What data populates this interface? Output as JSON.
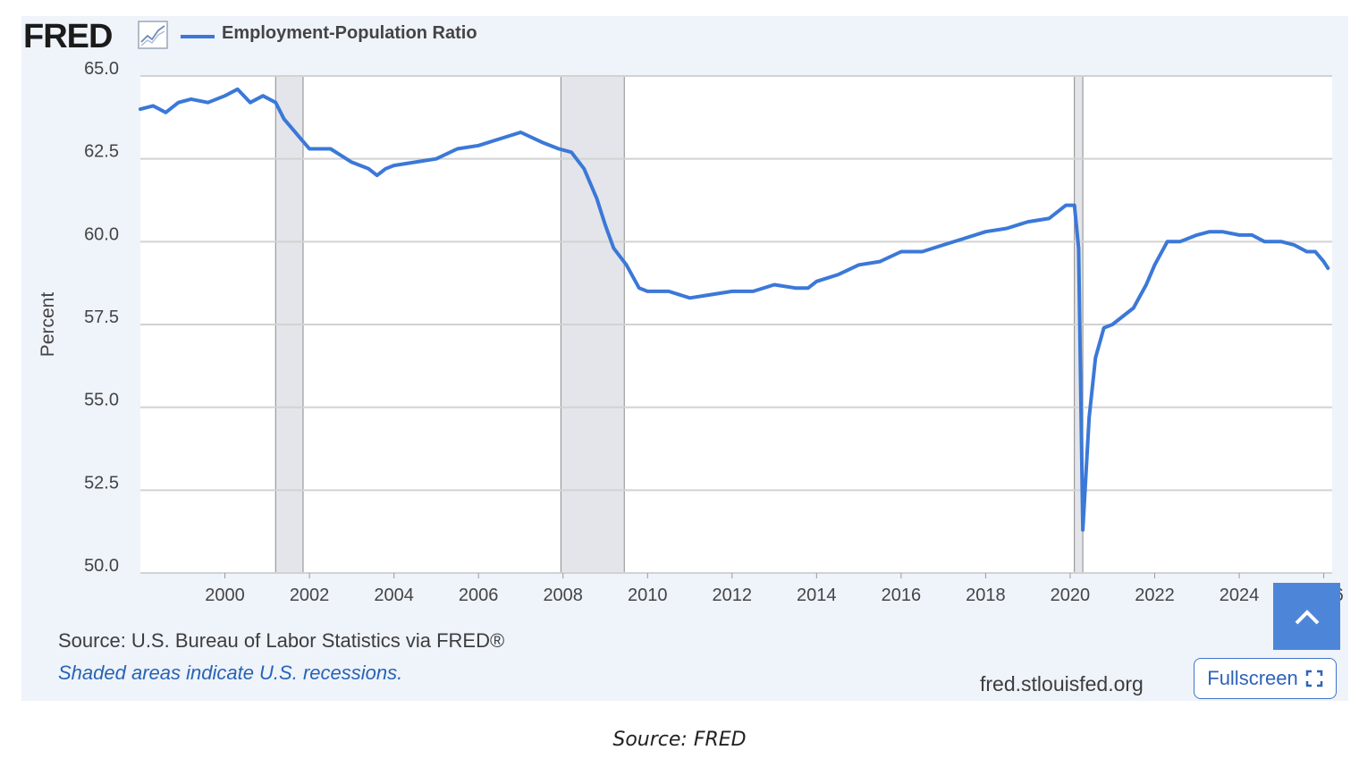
{
  "header": {
    "logo": "FRED",
    "logo_icon": "trend-line-icon",
    "legend_label": "Employment-Population Ratio"
  },
  "chart_data": {
    "type": "line",
    "ylabel": "Percent",
    "xlabel": "",
    "xlim": [
      1998.0,
      2026.2
    ],
    "ylim": [
      50.0,
      65.0
    ],
    "grid": true,
    "y_ticks": [
      "50.0",
      "52.5",
      "55.0",
      "57.5",
      "60.0",
      "62.5",
      "65.0"
    ],
    "x_ticks": [
      "2000",
      "2002",
      "2004",
      "2006",
      "2008",
      "2010",
      "2012",
      "2014",
      "2016",
      "2018",
      "2020",
      "2022",
      "2024",
      "2026"
    ],
    "recessions": [
      [
        2001.2,
        2001.85
      ],
      [
        2007.95,
        2009.45
      ],
      [
        2020.1,
        2020.3
      ]
    ],
    "series": [
      {
        "color": "#3b78d8",
        "x": [
          1998.0,
          1998.3,
          1998.6,
          1998.9,
          1999.2,
          1999.6,
          2000.0,
          2000.3,
          2000.6,
          2000.9,
          2001.2,
          2001.4,
          2001.6,
          2001.8,
          2002.0,
          2002.5,
          2003.0,
          2003.4,
          2003.6,
          2003.8,
          2004.0,
          2004.5,
          2005.0,
          2005.5,
          2006.0,
          2006.5,
          2007.0,
          2007.5,
          2007.9,
          2008.2,
          2008.5,
          2008.8,
          2009.0,
          2009.2,
          2009.5,
          2009.8,
          2010.0,
          2010.5,
          2011.0,
          2011.5,
          2012.0,
          2012.5,
          2013.0,
          2013.5,
          2013.8,
          2014.0,
          2014.5,
          2015.0,
          2015.5,
          2016.0,
          2016.5,
          2017.0,
          2017.5,
          2018.0,
          2018.5,
          2019.0,
          2019.5,
          2019.9,
          2020.1,
          2020.2,
          2020.3,
          2020.45,
          2020.6,
          2020.8,
          2021.0,
          2021.5,
          2021.8,
          2022.0,
          2022.3,
          2022.6,
          2023.0,
          2023.3,
          2023.6,
          2024.0,
          2024.3,
          2024.6,
          2025.0,
          2025.3,
          2025.6,
          2025.8,
          2026.0,
          2026.1
        ],
        "values": [
          64.0,
          64.1,
          63.9,
          64.2,
          64.3,
          64.2,
          64.4,
          64.6,
          64.2,
          64.4,
          64.2,
          63.7,
          63.4,
          63.1,
          62.8,
          62.8,
          62.4,
          62.2,
          62.0,
          62.2,
          62.3,
          62.4,
          62.5,
          62.8,
          62.9,
          63.1,
          63.3,
          63.0,
          62.8,
          62.7,
          62.2,
          61.3,
          60.5,
          59.8,
          59.3,
          58.6,
          58.5,
          58.5,
          58.3,
          58.4,
          58.5,
          58.5,
          58.7,
          58.6,
          58.6,
          58.8,
          59.0,
          59.3,
          59.4,
          59.7,
          59.7,
          59.9,
          60.1,
          60.3,
          60.4,
          60.6,
          60.7,
          61.1,
          61.1,
          59.8,
          51.3,
          54.7,
          56.5,
          57.4,
          57.5,
          58.0,
          58.7,
          59.3,
          60.0,
          60.0,
          60.2,
          60.3,
          60.3,
          60.2,
          60.2,
          60.0,
          60.0,
          59.9,
          59.7,
          59.7,
          59.4,
          59.2
        ]
      }
    ]
  },
  "footer": {
    "source": "Source: U.S. Bureau of Labor Statistics via FRED®",
    "note": "Shaded areas indicate U.S. recessions.",
    "site": "fred.stlouisfed.org",
    "fullscreen_label": "Fullscreen"
  },
  "caption": "Source: FRED"
}
